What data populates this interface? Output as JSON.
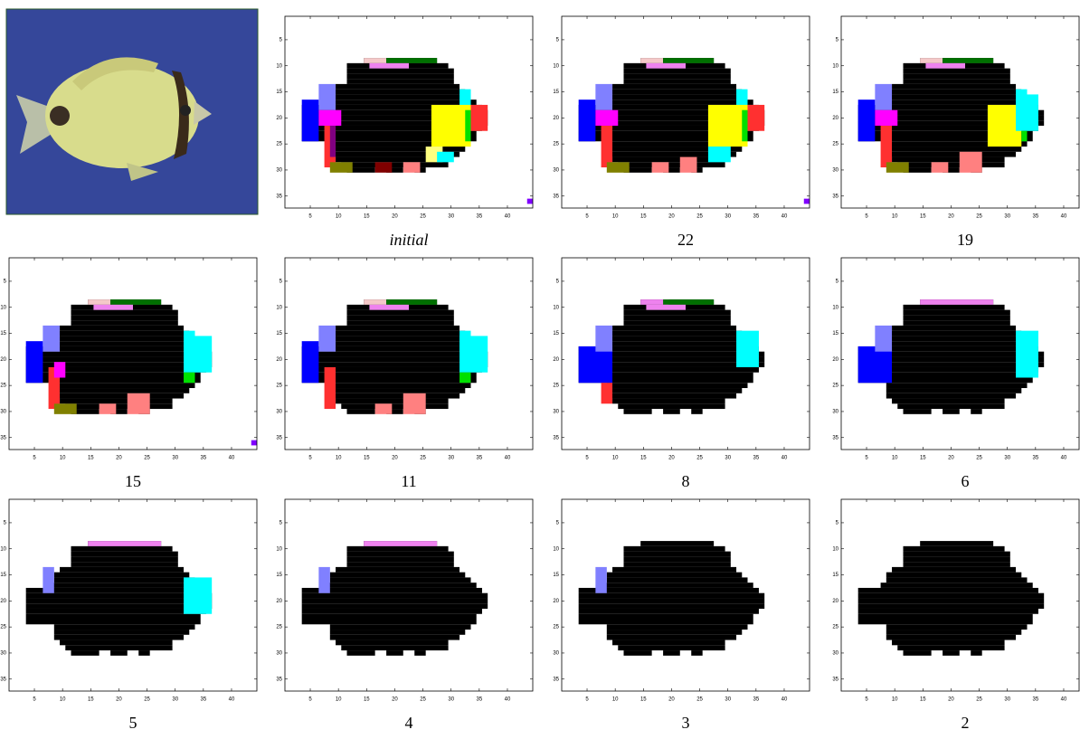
{
  "axes": {
    "xlim": [
      0.5,
      44.5
    ],
    "ylim": [
      0.5,
      37.3
    ],
    "xticks": [
      5,
      10,
      15,
      20,
      25,
      30,
      35,
      40
    ],
    "yticks": [
      5,
      10,
      15,
      20,
      25,
      30,
      35
    ]
  },
  "panels": [
    {
      "caption": "initial"
    },
    {
      "caption": "22"
    },
    {
      "caption": "19"
    },
    {
      "caption": "15"
    },
    {
      "caption": "11"
    },
    {
      "caption": "8"
    },
    {
      "caption": "6"
    },
    {
      "caption": "5"
    },
    {
      "caption": "4"
    },
    {
      "caption": "3"
    },
    {
      "caption": "2"
    }
  ]
}
